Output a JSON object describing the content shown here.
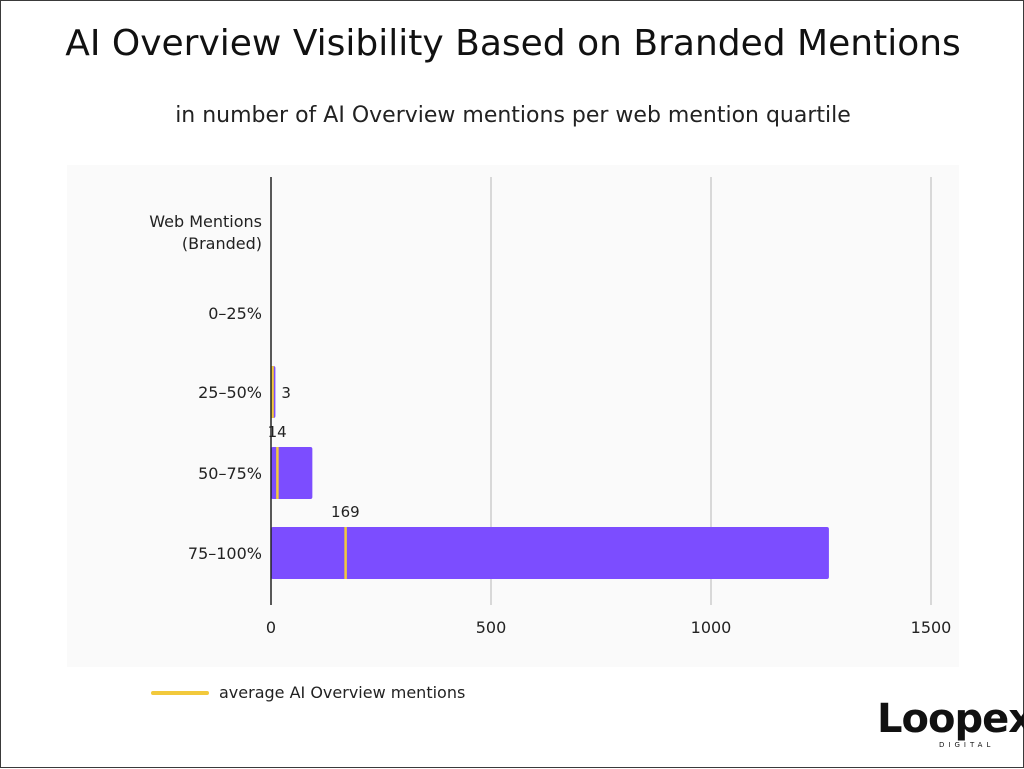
{
  "header": {
    "title": "AI Overview Visibility Based on Branded Mentions",
    "subtitle": "in number of AI Overview mentions per web mention quartile"
  },
  "legend": {
    "label": "average AI Overview mentions",
    "color": "#f2c93c"
  },
  "logo": {
    "word": "Loopex",
    "sub": "DIGITAL"
  },
  "colors": {
    "bar": "#7c4dff",
    "average_marker": "#f2c93c",
    "grid": "#cccccc",
    "axis": "#222222"
  },
  "chart_data": {
    "type": "bar",
    "orientation": "horizontal",
    "y_axis_header": "Web Mentions\n(Branded)",
    "categories": [
      "0–25%",
      "25–50%",
      "50–75%",
      "75–100%"
    ],
    "series": [
      {
        "values": [
          0,
          10,
          94,
          1268
        ]
      },
      {
        "name": "average AI Overview mentions",
        "values": [
          0,
          3,
          14,
          169
        ],
        "labels": [
          "",
          "3",
          "14",
          "169"
        ]
      }
    ],
    "xlim": [
      0,
      1500
    ],
    "xticks": [
      0,
      500,
      1000,
      1500
    ],
    "grid": true,
    "legend_position": "bottom-left"
  }
}
